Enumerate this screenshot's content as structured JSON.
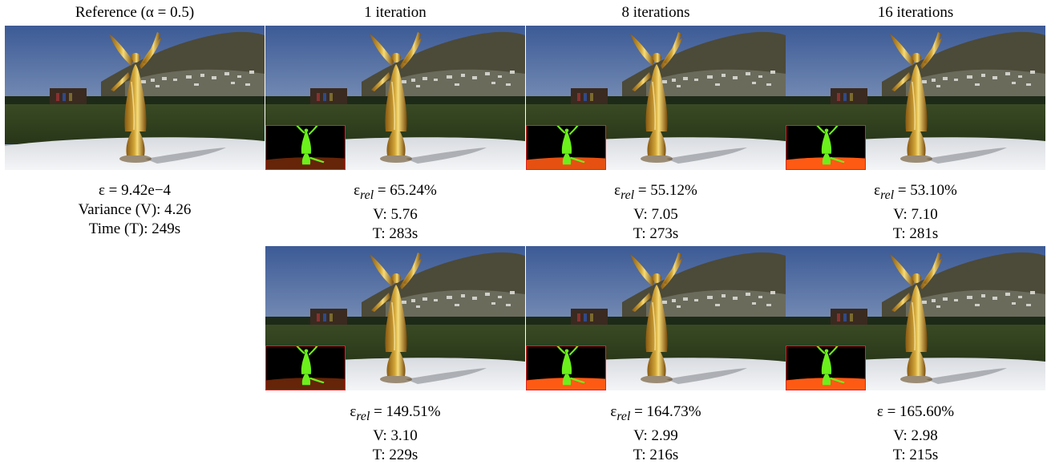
{
  "headers": {
    "reference": "Reference (α = 0.5)",
    "iter1": "1 iteration",
    "iter8": "8 iterations",
    "iter16": "16 iterations"
  },
  "reference": {
    "error": "ε = 9.42e−4",
    "variance": "Variance (V): 4.26",
    "time": "Time (T): 249s"
  },
  "rows": [
    {
      "cells": [
        {
          "symbol": "ε",
          "sub": "rel",
          "value": " = 65.24%",
          "variance": "V: 5.76",
          "time": "T: 283s"
        },
        {
          "symbol": "ε",
          "sub": "rel",
          "value": " = 55.12%",
          "variance": "V: 7.05",
          "time": "T: 273s"
        },
        {
          "symbol": "ε",
          "sub": "rel",
          "value": " = 53.10%",
          "variance": "V: 7.10",
          "time": "T: 281s"
        }
      ]
    },
    {
      "cells": [
        {
          "symbol": "ε",
          "sub": "rel",
          "value": " = 149.51%",
          "variance": "V: 3.10",
          "time": "T: 229s"
        },
        {
          "symbol": "ε",
          "sub": "rel",
          "value": " = 164.73%",
          "variance": "V: 2.99",
          "time": "T: 216s"
        },
        {
          "symbol": "ε",
          "sub": "",
          "value": " = 165.60%",
          "variance": "V: 2.98",
          "time": "T: 215s"
        }
      ]
    }
  ],
  "colors": {
    "inset_border": "#e32222",
    "statue_gold": "#d4a83a",
    "mask_green": "#6cf01c",
    "mask_orange": "#ff5a14"
  }
}
